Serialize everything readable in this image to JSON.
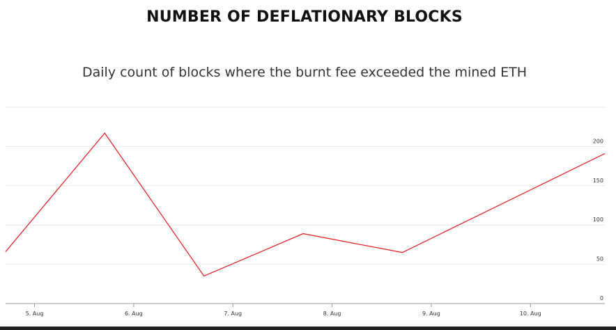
{
  "header": {
    "title": "NUMBER OF DEFLATIONARY BLOCKS",
    "subtitle": "Daily count of blocks where the burnt fee exceeded the mined ETH"
  },
  "colors": {
    "line": "#e3262b",
    "grid": "#e6e6e6",
    "axis": "#999999",
    "text": "#333333"
  },
  "chart_data": {
    "type": "line",
    "title": "NUMBER OF DEFLATIONARY BLOCKS",
    "subtitle": "Daily count of blocks where the burnt fee exceeded the mined ETH",
    "xlabel": "",
    "ylabel": "",
    "x_tick_labels": [
      "5. Aug",
      "6. Aug",
      "7. Aug",
      "8. Aug",
      "9. Aug",
      "10. Aug"
    ],
    "x_range": [
      "2021-08-04 17:00",
      "2021-08-10 18:00"
    ],
    "y_ticks": [
      0,
      50,
      100,
      150,
      200
    ],
    "ylim": [
      0,
      250
    ],
    "grid": true,
    "legend": "none",
    "y_axis_position": "right",
    "series": [
      {
        "x": [
          "2021-08-04 17:00",
          "2021-08-05 17:00",
          "2021-08-06 17:00",
          "2021-08-07 17:00",
          "2021-08-08 17:00",
          "2021-08-10 18:00"
        ],
        "values": [
          66,
          217,
          35,
          89,
          65,
          191
        ]
      }
    ]
  }
}
